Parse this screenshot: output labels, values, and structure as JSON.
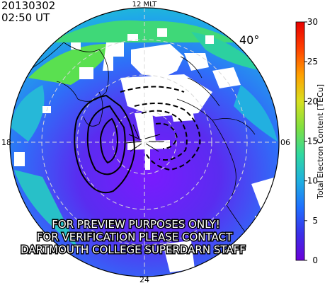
{
  "header": {
    "date": "20130302",
    "time": "02:50 UT"
  },
  "map": {
    "mlt_labels": {
      "top": "12 MLT",
      "bottom": "24",
      "left": "18",
      "right": "06"
    },
    "latitude_label": "40°",
    "watermark_lines": [
      "FOR PREVIEW PURPOSES ONLY!",
      "FOR VERIFICATION PLEASE CONTACT",
      "DARTMOUTH COLLEGE SUPERDARN STAFF"
    ]
  },
  "colorbar": {
    "title": "Total Electron Content [TECu]",
    "ticks": [
      "0",
      "5",
      "10",
      "15",
      "20",
      "25",
      "30"
    ],
    "min": 0,
    "max": 30,
    "colors": [
      "#6a00d8",
      "#3a2fe8",
      "#1f6fff",
      "#1fb0e0",
      "#2fd8a0",
      "#7fe040",
      "#d8e020",
      "#ffa000",
      "#ff4000",
      "#e80000"
    ]
  }
}
